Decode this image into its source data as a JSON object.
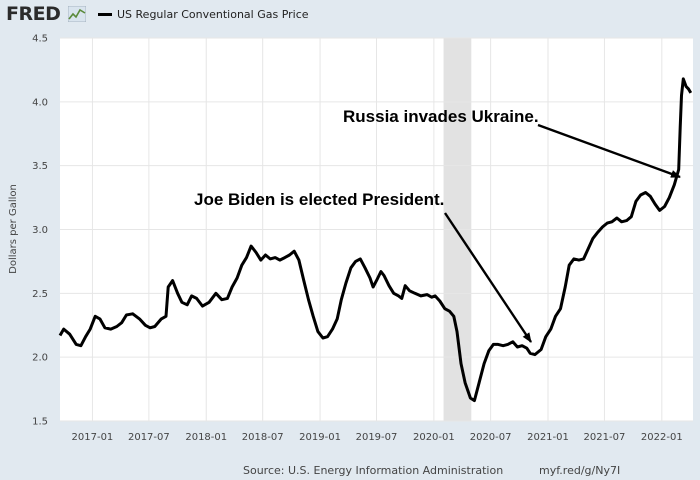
{
  "header": {
    "logo": "FRED",
    "legend_label": "US Regular Conventional Gas Price"
  },
  "footer": {
    "source": "Source: U.S. Energy Information Administration",
    "link": "myf.red/g/Ny7I"
  },
  "colors": {
    "background": "#e1e9f0",
    "plot_background": "#ffffff",
    "line": "#000000",
    "recession_band": "#e2e2e2"
  },
  "chart_data": {
    "type": "line",
    "ylabel": "Dollars per Gallon",
    "ylim": [
      1.5,
      4.5
    ],
    "yticks": [
      1.5,
      2.0,
      2.5,
      3.0,
      3.5,
      4.0,
      4.5
    ],
    "xlim": [
      "2016-09-19",
      "2022-04-11"
    ],
    "xticks": [
      "2017-01",
      "2017-07",
      "2018-01",
      "2018-07",
      "2019-01",
      "2019-07",
      "2020-01",
      "2020-07",
      "2021-01",
      "2021-07",
      "2022-01"
    ],
    "grid": true,
    "recession": {
      "start": "2020-02-01",
      "end": "2020-04-30"
    },
    "annotations": [
      {
        "text": "Joe Biden is elected President.",
        "date": "2020-11-03"
      },
      {
        "text": "Russia invades Ukraine.",
        "date": "2022-02-24"
      }
    ],
    "series": [
      {
        "name": "US Regular Conventional Gas Price",
        "points": [
          [
            "2016-09-19",
            2.17
          ],
          [
            "2016-10-01",
            2.22
          ],
          [
            "2016-10-20",
            2.18
          ],
          [
            "2016-11-10",
            2.1
          ],
          [
            "2016-11-25",
            2.09
          ],
          [
            "2016-12-10",
            2.16
          ],
          [
            "2016-12-25",
            2.22
          ],
          [
            "2017-01-10",
            2.32
          ],
          [
            "2017-01-25",
            2.3
          ],
          [
            "2017-02-10",
            2.23
          ],
          [
            "2017-03-01",
            2.22
          ],
          [
            "2017-03-20",
            2.24
          ],
          [
            "2017-04-05",
            2.27
          ],
          [
            "2017-04-20",
            2.33
          ],
          [
            "2017-05-10",
            2.34
          ],
          [
            "2017-06-01",
            2.3
          ],
          [
            "2017-06-20",
            2.25
          ],
          [
            "2017-07-05",
            2.23
          ],
          [
            "2017-07-20",
            2.24
          ],
          [
            "2017-08-10",
            2.3
          ],
          [
            "2017-08-25",
            2.32
          ],
          [
            "2017-09-01",
            2.55
          ],
          [
            "2017-09-15",
            2.6
          ],
          [
            "2017-10-01",
            2.5
          ],
          [
            "2017-10-15",
            2.43
          ],
          [
            "2017-11-01",
            2.41
          ],
          [
            "2017-11-15",
            2.48
          ],
          [
            "2017-12-01",
            2.46
          ],
          [
            "2017-12-20",
            2.4
          ],
          [
            "2018-01-10",
            2.43
          ],
          [
            "2018-02-01",
            2.5
          ],
          [
            "2018-02-20",
            2.45
          ],
          [
            "2018-03-10",
            2.46
          ],
          [
            "2018-03-25",
            2.55
          ],
          [
            "2018-04-10",
            2.62
          ],
          [
            "2018-04-25",
            2.72
          ],
          [
            "2018-05-10",
            2.78
          ],
          [
            "2018-05-25",
            2.87
          ],
          [
            "2018-06-10",
            2.82
          ],
          [
            "2018-06-25",
            2.76
          ],
          [
            "2018-07-10",
            2.8
          ],
          [
            "2018-07-25",
            2.77
          ],
          [
            "2018-08-10",
            2.78
          ],
          [
            "2018-08-25",
            2.76
          ],
          [
            "2018-09-10",
            2.78
          ],
          [
            "2018-09-25",
            2.8
          ],
          [
            "2018-10-10",
            2.83
          ],
          [
            "2018-10-25",
            2.76
          ],
          [
            "2018-11-10",
            2.6
          ],
          [
            "2018-11-25",
            2.45
          ],
          [
            "2018-12-10",
            2.32
          ],
          [
            "2018-12-25",
            2.2
          ],
          [
            "2019-01-10",
            2.15
          ],
          [
            "2019-01-25",
            2.16
          ],
          [
            "2019-02-10",
            2.22
          ],
          [
            "2019-02-25",
            2.3
          ],
          [
            "2019-03-10",
            2.45
          ],
          [
            "2019-03-25",
            2.58
          ],
          [
            "2019-04-10",
            2.7
          ],
          [
            "2019-04-25",
            2.75
          ],
          [
            "2019-05-10",
            2.77
          ],
          [
            "2019-05-25",
            2.7
          ],
          [
            "2019-06-10",
            2.62
          ],
          [
            "2019-06-20",
            2.55
          ],
          [
            "2019-07-01",
            2.6
          ],
          [
            "2019-07-15",
            2.67
          ],
          [
            "2019-07-25",
            2.64
          ],
          [
            "2019-08-10",
            2.56
          ],
          [
            "2019-08-25",
            2.5
          ],
          [
            "2019-09-10",
            2.48
          ],
          [
            "2019-09-20",
            2.46
          ],
          [
            "2019-10-01",
            2.56
          ],
          [
            "2019-10-15",
            2.52
          ],
          [
            "2019-11-01",
            2.5
          ],
          [
            "2019-11-20",
            2.48
          ],
          [
            "2019-12-10",
            2.49
          ],
          [
            "2019-12-25",
            2.47
          ],
          [
            "2020-01-05",
            2.48
          ],
          [
            "2020-01-20",
            2.44
          ],
          [
            "2020-02-05",
            2.38
          ],
          [
            "2020-02-20",
            2.36
          ],
          [
            "2020-03-05",
            2.32
          ],
          [
            "2020-03-15",
            2.2
          ],
          [
            "2020-03-28",
            1.95
          ],
          [
            "2020-04-10",
            1.8
          ],
          [
            "2020-04-27",
            1.68
          ],
          [
            "2020-05-10",
            1.66
          ],
          [
            "2020-05-25",
            1.8
          ],
          [
            "2020-06-10",
            1.95
          ],
          [
            "2020-06-25",
            2.05
          ],
          [
            "2020-07-10",
            2.1
          ],
          [
            "2020-07-25",
            2.1
          ],
          [
            "2020-08-10",
            2.09
          ],
          [
            "2020-08-25",
            2.1
          ],
          [
            "2020-09-10",
            2.12
          ],
          [
            "2020-09-25",
            2.08
          ],
          [
            "2020-10-10",
            2.09
          ],
          [
            "2020-10-25",
            2.07
          ],
          [
            "2020-11-05",
            2.03
          ],
          [
            "2020-11-20",
            2.02
          ],
          [
            "2020-12-10",
            2.06
          ],
          [
            "2020-12-25",
            2.16
          ],
          [
            "2021-01-10",
            2.22
          ],
          [
            "2021-01-25",
            2.32
          ],
          [
            "2021-02-10",
            2.38
          ],
          [
            "2021-02-25",
            2.55
          ],
          [
            "2021-03-10",
            2.72
          ],
          [
            "2021-03-25",
            2.77
          ],
          [
            "2021-04-10",
            2.76
          ],
          [
            "2021-04-25",
            2.77
          ],
          [
            "2021-05-10",
            2.85
          ],
          [
            "2021-05-25",
            2.93
          ],
          [
            "2021-06-10",
            2.98
          ],
          [
            "2021-06-25",
            3.02
          ],
          [
            "2021-07-10",
            3.05
          ],
          [
            "2021-07-25",
            3.06
          ],
          [
            "2021-08-10",
            3.09
          ],
          [
            "2021-08-25",
            3.06
          ],
          [
            "2021-09-10",
            3.07
          ],
          [
            "2021-09-25",
            3.1
          ],
          [
            "2021-10-10",
            3.22
          ],
          [
            "2021-10-25",
            3.27
          ],
          [
            "2021-11-10",
            3.29
          ],
          [
            "2021-11-25",
            3.26
          ],
          [
            "2021-12-10",
            3.2
          ],
          [
            "2021-12-25",
            3.15
          ],
          [
            "2022-01-10",
            3.18
          ],
          [
            "2022-01-25",
            3.25
          ],
          [
            "2022-02-10",
            3.35
          ],
          [
            "2022-02-24",
            3.47
          ],
          [
            "2022-03-01",
            3.8
          ],
          [
            "2022-03-05",
            4.05
          ],
          [
            "2022-03-11",
            4.18
          ],
          [
            "2022-03-20",
            4.12
          ],
          [
            "2022-03-28",
            4.1
          ],
          [
            "2022-04-04",
            4.07
          ]
        ]
      }
    ]
  }
}
